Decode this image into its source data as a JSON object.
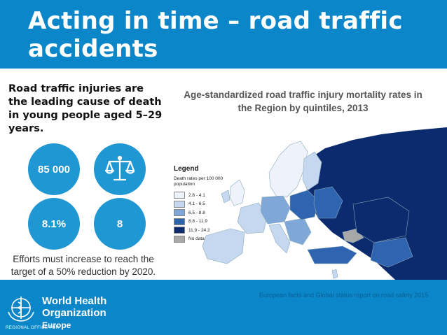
{
  "slide": {
    "title": "Acting in time – road traffic accidents",
    "intro": "Road traffic injuries are the leading cause of death in young people aged 5–29 years.",
    "circles": {
      "c1": "85 000",
      "c2_icon": "scales-icon",
      "c3": "8.1%",
      "c4": "8"
    },
    "note": "Efforts must increase to reach the target of a 50% reduction by 2020.",
    "map_title": "Age-standardized road traffic injury mortality rates in the Region by quintiles, 2013",
    "source": "European facts and Global status report on road safety 2015",
    "org_line1": "World Health",
    "org_line2": "Organization",
    "org_regional": "REGIONAL OFFICE FOR",
    "org_europe": "Europe"
  },
  "legend": {
    "title": "Legend",
    "subtitle": "Death rates per 100 000 population",
    "items": [
      {
        "label": "2.8 - 4.1",
        "color": "#eef3fb"
      },
      {
        "label": "4.1 - 6.5",
        "color": "#c6d8ef"
      },
      {
        "label": "6.5 - 8.8",
        "color": "#7fa8d8"
      },
      {
        "label": "8.8 - 11.9",
        "color": "#2f64b0"
      },
      {
        "label": "11.9 - 24.2",
        "color": "#0c2a6e"
      },
      {
        "label": "No data",
        "color": "#a8a8a8"
      }
    ]
  },
  "colors": {
    "header": "#0a86c9",
    "circle": "#1f97d3"
  }
}
